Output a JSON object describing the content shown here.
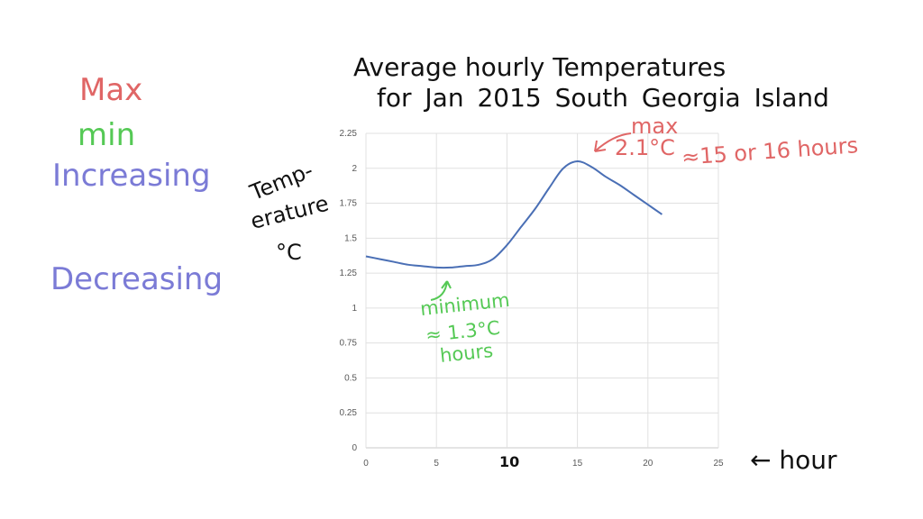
{
  "legend_notes": {
    "max": {
      "text": "Max",
      "color": "#e06666"
    },
    "min": {
      "text": "min",
      "color": "#55c955"
    },
    "increasing": {
      "text": "Increasing",
      "color": "#7b7bd6"
    },
    "decreasing": {
      "text": "Decreasing",
      "color": "#7b7bd6"
    }
  },
  "title": {
    "line1": "Average hourly Temperatures",
    "line2": "for Jan 2015  South Georgia Island"
  },
  "axis_labels": {
    "y_line1": "Temp-",
    "y_line2": "erature",
    "y_line3": "°C",
    "x": "← hour",
    "x_handwritten_10": "10"
  },
  "annotations": {
    "max": {
      "line1": "max",
      "line2": "2.1°C",
      "line3": "≈15 or 16 hours",
      "color": "#e06666"
    },
    "min": {
      "line1": "minimum",
      "line2": "≈ 1.3°C",
      "line3": "hours",
      "color": "#55c955"
    }
  },
  "chart_data": {
    "type": "line",
    "title": "Average hourly Temperatures for Jan 2015 South Georgia Island",
    "xlabel": "hour",
    "ylabel": "Temperature °C",
    "xlim": [
      0,
      25
    ],
    "ylim": [
      0,
      2.25
    ],
    "x_ticks": [
      0,
      5,
      10,
      15,
      20,
      25
    ],
    "y_ticks": [
      0,
      0.25,
      0.5,
      0.75,
      1,
      1.25,
      1.5,
      1.75,
      2,
      2.25
    ],
    "grid": true,
    "series": [
      {
        "name": "Average hourly temperature",
        "color": "#4a6fb5",
        "x": [
          0,
          1,
          2,
          3,
          4,
          5,
          6,
          7,
          8,
          9,
          10,
          11,
          12,
          13,
          14,
          15,
          16,
          17,
          18,
          19,
          20,
          21
        ],
        "values": [
          1.37,
          1.35,
          1.33,
          1.31,
          1.3,
          1.29,
          1.29,
          1.3,
          1.31,
          1.35,
          1.45,
          1.58,
          1.71,
          1.86,
          2.0,
          2.05,
          2.01,
          1.94,
          1.88,
          1.81,
          1.74,
          1.67
        ]
      }
    ],
    "annotations": [
      {
        "text": "max 2.1°C ≈15 or 16 hours",
        "x": 15,
        "y": 2.05
      },
      {
        "text": "minimum ≈1.3°C hours",
        "x": 5,
        "y": 1.29
      }
    ]
  }
}
